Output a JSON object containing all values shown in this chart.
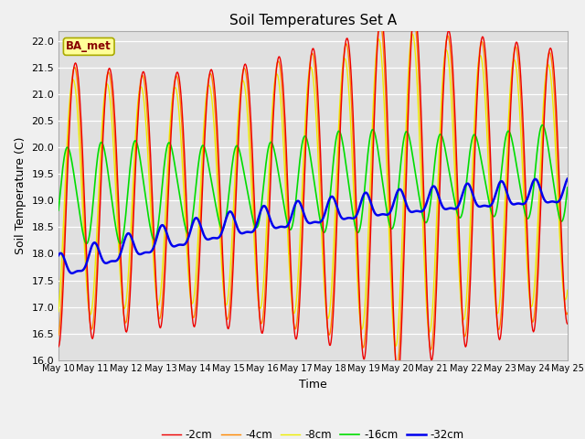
{
  "title": "Soil Temperatures Set A",
  "xlabel": "Time",
  "ylabel": "Soil Temperature (C)",
  "ylim": [
    16.0,
    22.2
  ],
  "yticks": [
    16.0,
    16.5,
    17.0,
    17.5,
    18.0,
    18.5,
    19.0,
    19.5,
    20.0,
    20.5,
    21.0,
    21.5,
    22.0
  ],
  "legend_label": "BA_met",
  "series_labels": [
    "-2cm",
    "-4cm",
    "-8cm",
    "-16cm",
    "-32cm"
  ],
  "series_colors": [
    "#ee0000",
    "#ff8800",
    "#eeee00",
    "#00dd00",
    "#0000ee"
  ],
  "series_linewidths": [
    1.0,
    1.0,
    1.0,
    1.2,
    1.8
  ],
  "background_color": "#f0f0f0",
  "plot_bg_color": "#e0e0e0",
  "n_points": 720,
  "x_start": 10.0,
  "x_end": 25.0,
  "xtick_positions": [
    10,
    11,
    12,
    13,
    14,
    15,
    16,
    17,
    18,
    19,
    20,
    21,
    22,
    23,
    24,
    25
  ],
  "xtick_labels": [
    "May 10",
    "May 11",
    "May 12",
    "May 13",
    "May 14",
    "May 15",
    "May 16",
    "May 17",
    "May 18",
    "May 19",
    "May 20",
    "May 21",
    "May 22",
    "May 23",
    "May 24",
    "May 25"
  ]
}
